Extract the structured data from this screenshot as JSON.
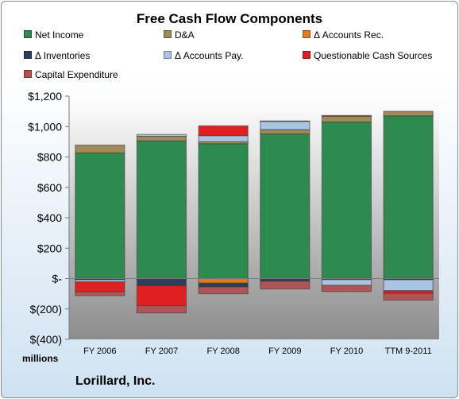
{
  "chart_data": {
    "type": "bar",
    "stacked": true,
    "title": "Free Cash Flow Components",
    "units_label": "millions",
    "company": "Lorillard, Inc.",
    "categories": [
      "FY 2006",
      "FY 2007",
      "FY 2008",
      "FY 2009",
      "FY 2010",
      "TTM 9-2011"
    ],
    "ylim": [
      -400,
      1200
    ],
    "yticks": [
      1200,
      1000,
      800,
      600,
      400,
      200,
      0,
      -200,
      -400
    ],
    "ytick_labels": [
      "$1,200",
      "$1,000",
      "$800",
      "$600",
      "$400",
      "$200",
      "$-",
      "$(200)",
      "$(400)"
    ],
    "grid": false,
    "legend_position": "top",
    "series": [
      {
        "name": "Net Income",
        "color": "#2e8b4f",
        "values": [
          826,
          906,
          888,
          952,
          1030,
          1070
        ]
      },
      {
        "name": "D&A",
        "color": "#a08a55",
        "values": [
          52,
          30,
          12,
          28,
          38,
          30
        ]
      },
      {
        "name": "Δ Accounts Rec.",
        "color": "#e07b20",
        "values": [
          -3,
          -3,
          -30,
          -3,
          -3,
          -3
        ]
      },
      {
        "name": "Δ Inventories",
        "color": "#2c3e5c",
        "values": [
          -5,
          -45,
          -25,
          -15,
          -4,
          -5
        ]
      },
      {
        "name": "Δ Accounts Pay.",
        "color": "#a9c4e3",
        "values": [
          -14,
          12,
          40,
          55,
          -38,
          -72
        ]
      },
      {
        "name": "Questionable Cash Sources",
        "color": "#e02020",
        "values": [
          -65,
          -130,
          65,
          2,
          5,
          -18
        ]
      },
      {
        "name": "Capital Expenditure",
        "color": "#b05555",
        "values": [
          -25,
          -48,
          -45,
          -50,
          -40,
          -45
        ]
      }
    ]
  }
}
